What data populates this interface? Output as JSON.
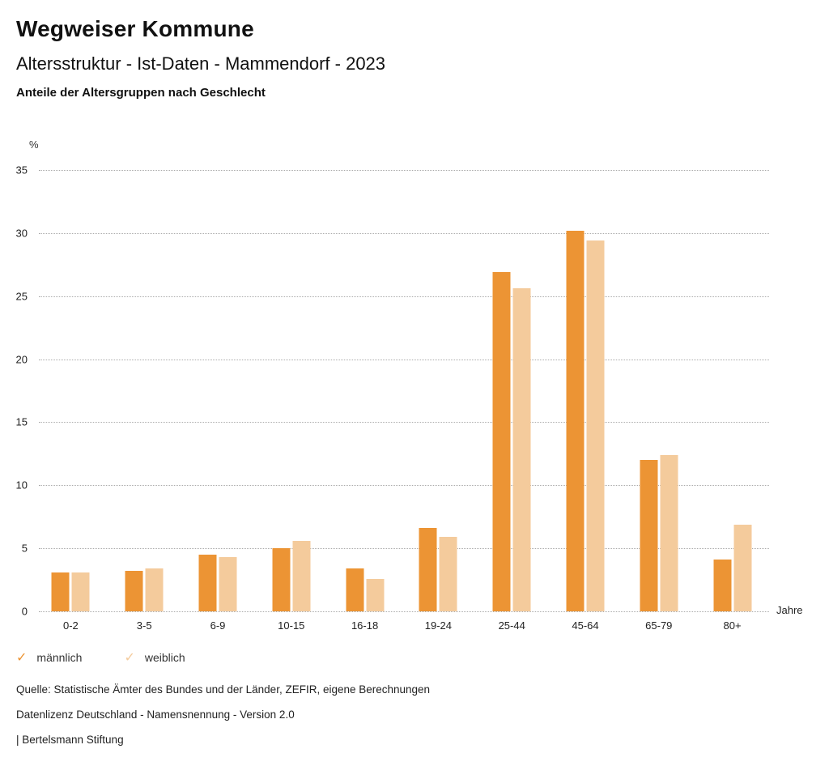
{
  "header": {
    "title": "Wegweiser Kommune",
    "subtitle": "Altersstruktur - Ist-Daten - Mammendorf - 2023",
    "chart_heading": "Anteile der Altersgruppen nach Geschlecht"
  },
  "chart_data": {
    "type": "bar",
    "title": "Anteile der Altersgruppen nach Geschlecht",
    "ylabel": "%",
    "xlabel": "Jahre",
    "ylim": [
      0,
      35
    ],
    "ytick_step": 5,
    "grid": true,
    "legend_position": "bottom-left",
    "categories": [
      "0-2",
      "3-5",
      "6-9",
      "10-15",
      "16-18",
      "19-24",
      "25-44",
      "45-64",
      "65-79",
      "80+"
    ],
    "series": [
      {
        "name": "männlich",
        "color": "#EC9434",
        "values": [
          3.1,
          3.2,
          4.5,
          5.0,
          3.4,
          6.6,
          26.9,
          30.2,
          12.0,
          4.1
        ]
      },
      {
        "name": "weiblich",
        "color": "#F4CB9C",
        "values": [
          3.1,
          3.4,
          4.3,
          5.6,
          2.6,
          5.9,
          25.6,
          29.4,
          12.4,
          6.9
        ]
      }
    ]
  },
  "legend": {
    "items": [
      {
        "label": "männlich",
        "color": "#EC9434",
        "icon": "check-icon",
        "check_glyph": "✓"
      },
      {
        "label": "weiblich",
        "color": "#F4CB9C",
        "icon": "check-icon",
        "check_glyph": "✓"
      }
    ]
  },
  "footer": {
    "source": "Quelle: Statistische Ämter des Bundes und der Länder, ZEFIR, eigene Berechnungen",
    "license": "Datenlizenz Deutschland - Namensnennung - Version 2.0",
    "attribution": "| Bertelsmann Stiftung"
  }
}
